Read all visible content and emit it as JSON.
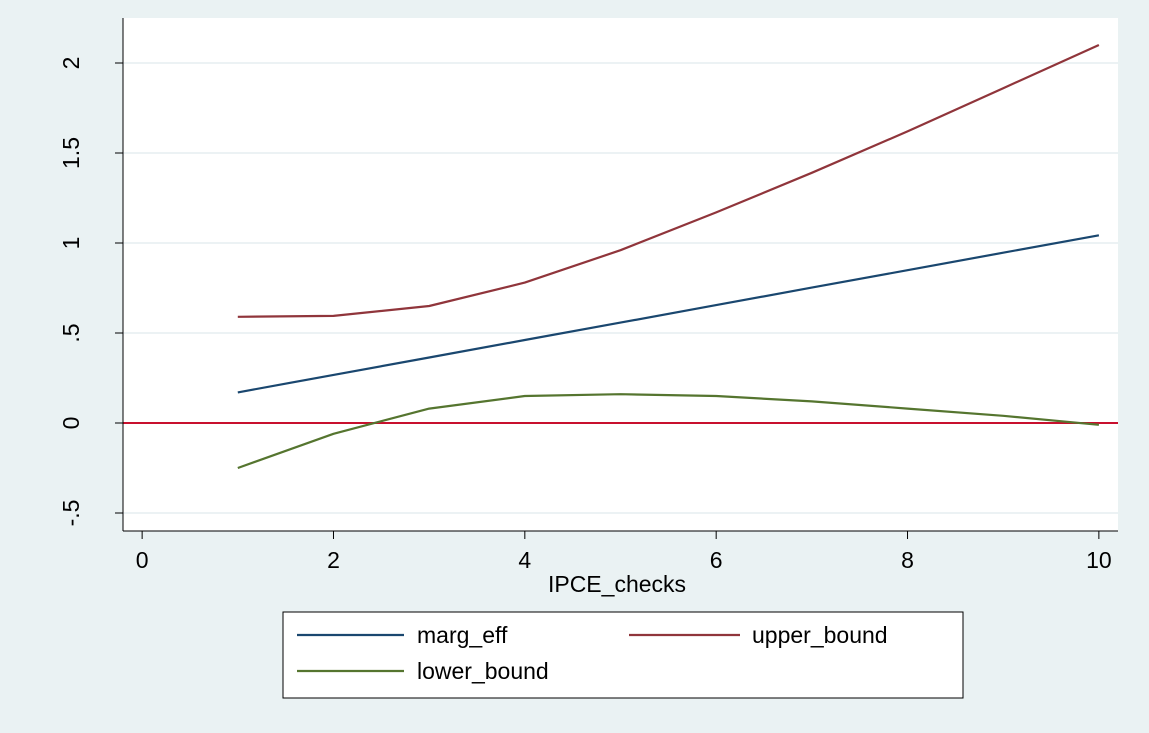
{
  "chart_data": {
    "type": "line",
    "xlabel": "IPCE_checks",
    "ylabel": "",
    "xlim": [
      -0.2,
      10.2
    ],
    "ylim": [
      -0.6,
      2.25
    ],
    "xticks": [
      {
        "value": 0,
        "label": "0"
      },
      {
        "value": 2,
        "label": "2"
      },
      {
        "value": 4,
        "label": "4"
      },
      {
        "value": 6,
        "label": "6"
      },
      {
        "value": 8,
        "label": "8"
      },
      {
        "value": 10,
        "label": "10"
      }
    ],
    "yticks": [
      {
        "value": -0.5,
        "label": "-.5"
      },
      {
        "value": 0,
        "label": "0"
      },
      {
        "value": 0.5,
        "label": ".5"
      },
      {
        "value": 1,
        "label": "1"
      },
      {
        "value": 1.5,
        "label": "1.5"
      },
      {
        "value": 2,
        "label": "2"
      }
    ],
    "grid": true,
    "reference_line": {
      "y": 0,
      "color": "#c8102e"
    },
    "legend_position": "bottom",
    "x": [
      1,
      2,
      3,
      4,
      5,
      6,
      7,
      8,
      9,
      10
    ],
    "series": [
      {
        "name": "marg_eff",
        "color": "#1a476f",
        "values": [
          0.17,
          0.267,
          0.364,
          0.461,
          0.558,
          0.655,
          0.752,
          0.849,
          0.946,
          1.043
        ]
      },
      {
        "name": "upper_bound",
        "color": "#90353b",
        "values": [
          0.59,
          0.595,
          0.65,
          0.78,
          0.96,
          1.17,
          1.39,
          1.62,
          1.86,
          2.1
        ]
      },
      {
        "name": "lower_bound",
        "color": "#55752f",
        "values": [
          -0.25,
          -0.06,
          0.08,
          0.15,
          0.16,
          0.15,
          0.12,
          0.08,
          0.04,
          -0.01
        ]
      }
    ]
  }
}
